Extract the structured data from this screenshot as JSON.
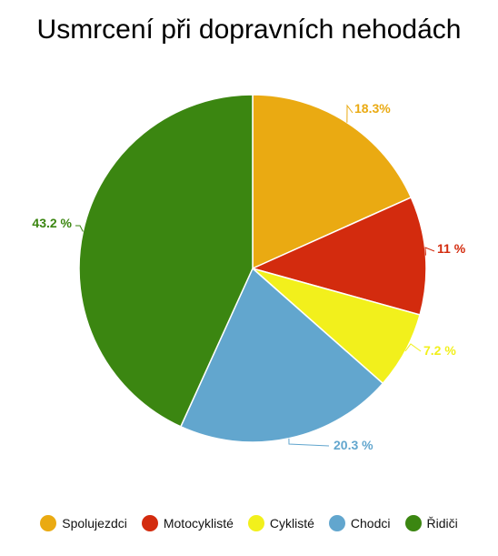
{
  "chart_data": {
    "type": "pie",
    "title": "Usmrcení při dopravních nehodách",
    "legend_position": "bottom",
    "slices": [
      {
        "name": "Spolujezdci",
        "value": 18.3,
        "label": "18.3%",
        "color": "#EAAA12"
      },
      {
        "name": "Motocyklisté",
        "value": 11,
        "label": "11 %",
        "color": "#D32B0E"
      },
      {
        "name": "Cyklisté",
        "value": 7.2,
        "label": "7.2 %",
        "color": "#F2F01C"
      },
      {
        "name": "Chodci",
        "value": 20.3,
        "label": "20.3 %",
        "color": "#62A6CE"
      },
      {
        "name": "Řidiči",
        "value": 43.2,
        "label": "43.2 %",
        "color": "#3B8611"
      }
    ]
  }
}
